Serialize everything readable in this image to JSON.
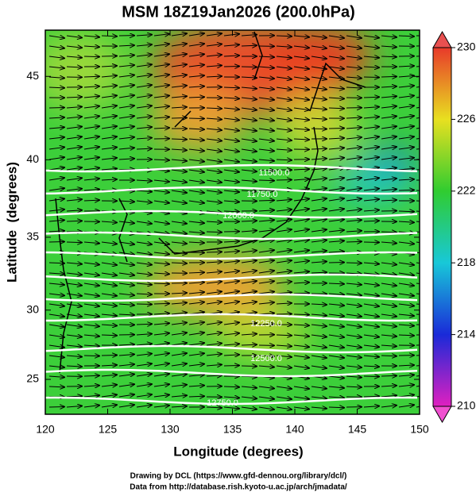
{
  "title": "MSM 18Z19Jan2026 (200.0hPa)",
  "x_label": "Longitude (degrees)",
  "y_label": "Latitude  (degrees)",
  "map": {
    "xlim": [
      120,
      150
    ],
    "ylim": [
      22.4,
      47.6
    ],
    "xticks": [
      120,
      125,
      130,
      135,
      140,
      145,
      150
    ],
    "yticks": [
      25,
      30,
      35,
      40,
      45
    ]
  },
  "colorbar": {
    "lim": [
      210,
      230
    ],
    "ticks": [
      210,
      214,
      218,
      222,
      226,
      230
    ]
  },
  "contour_labels": [
    "11500.0",
    "11750.0",
    "12000.0",
    "12250.0",
    "12500.0",
    "12750.0"
  ],
  "credits": [
    "Drawing by DCL (https://www.gfd-dennou.org/library/dcl/)",
    "Data from http://database.rish.kyoto-u.ac.jp/arch/jmadata/"
  ]
}
